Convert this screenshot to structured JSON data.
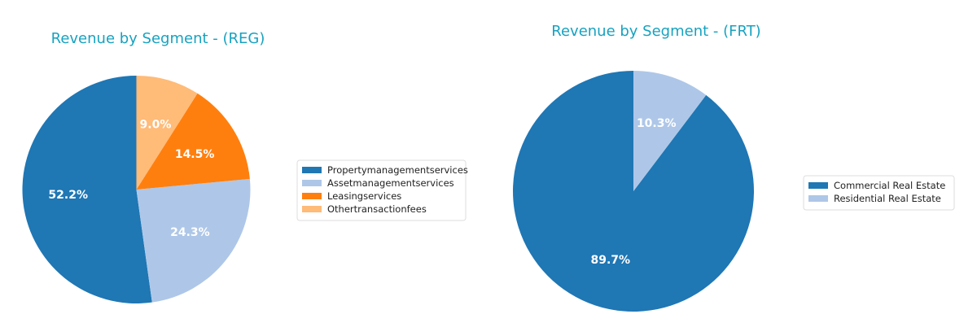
{
  "chart_data": [
    {
      "type": "pie",
      "title": "Revenue by Segment - (REG)",
      "start_angle_deg": 90,
      "direction": "counterclockwise",
      "legend_placement": "right",
      "slices": [
        {
          "name": "Propertymanagementservices",
          "value": 52.2,
          "label": "52.2%",
          "color": "#1f77b4"
        },
        {
          "name": "Assetmanagementservices",
          "value": 24.3,
          "label": "24.3%",
          "color": "#aec7e8"
        },
        {
          "name": "Leasingservices",
          "value": 14.5,
          "label": "14.5%",
          "color": "#ff7f0e"
        },
        {
          "name": "Othertransactionfees",
          "value": 9.0,
          "label": "9.0%",
          "color": "#ffbb78"
        }
      ]
    },
    {
      "type": "pie",
      "title": "Revenue by Segment - (FRT)",
      "start_angle_deg": 90,
      "direction": "counterclockwise",
      "legend_placement": "right",
      "slices": [
        {
          "name": "Commercial Real Estate",
          "value": 89.7,
          "label": "89.7%",
          "color": "#1f77b4"
        },
        {
          "name": "Residential Real Estate",
          "value": 10.3,
          "label": "10.3%",
          "color": "#aec7e8"
        }
      ]
    }
  ]
}
